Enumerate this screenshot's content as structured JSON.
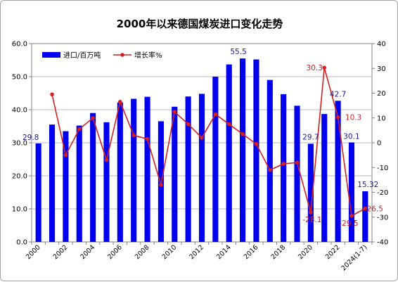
{
  "chart_data": {
    "type": "bar+line",
    "title": "2000年以来德国煤炭进口变化走势",
    "x_ticks": [
      "2000",
      "2002",
      "2004",
      "2006",
      "2008",
      "2010",
      "2012",
      "2014",
      "2016",
      "2018",
      "2020",
      "2022",
      "2024(1-7)"
    ],
    "categories": [
      "2000",
      "2001",
      "2002",
      "2003",
      "2004",
      "2005",
      "2006",
      "2007",
      "2008",
      "2009",
      "2010",
      "2011",
      "2012",
      "2013",
      "2014",
      "2015",
      "2016",
      "2017",
      "2018",
      "2019",
      "2020",
      "2021",
      "2022",
      "2023",
      "2024(1-7)"
    ],
    "y_left": {
      "ylim": [
        0,
        60
      ],
      "ticks": [
        "0.0",
        "10.0",
        "20.0",
        "30.0",
        "40.0",
        "50.0",
        "60.0"
      ]
    },
    "y_right": {
      "ylim": [
        -40,
        40
      ],
      "ticks": [
        "-40",
        "-30",
        "-20",
        "-10",
        "0",
        "10",
        "20",
        "30",
        "40"
      ]
    },
    "grid": true,
    "legend_position": "top-left",
    "series": [
      {
        "name": "进口/百万吨",
        "type": "bar",
        "axis": "left",
        "color": "#0000ee",
        "values": [
          29.8,
          35.5,
          33.5,
          35.2,
          39.0,
          36.2,
          42.2,
          43.3,
          43.9,
          36.5,
          40.9,
          44.0,
          44.8,
          50.0,
          53.7,
          55.5,
          55.2,
          49.0,
          44.7,
          41.2,
          29.7,
          38.7,
          42.7,
          30.1,
          15.32
        ],
        "data_labels": [
          {
            "index": 0,
            "text": "29.8"
          },
          {
            "index": 15,
            "text": "55.5"
          },
          {
            "index": 20,
            "text": "29.7"
          },
          {
            "index": 22,
            "text": "42.7"
          },
          {
            "index": 23,
            "text": "30.1"
          },
          {
            "index": 24,
            "text": "15.32"
          }
        ]
      },
      {
        "name": "增长率%",
        "type": "line",
        "axis": "right",
        "color": "#d42020",
        "values": [
          null,
          19.5,
          -5.0,
          5.5,
          10.0,
          -7.0,
          16.5,
          3.0,
          1.5,
          -17.0,
          12.5,
          7.5,
          2.0,
          11.5,
          7.5,
          3.5,
          -0.5,
          -11.0,
          -8.5,
          -8.0,
          -28.1,
          30.3,
          10.3,
          -29.5,
          -26.5
        ],
        "data_labels": [
          {
            "index": 20,
            "text": "-28.1"
          },
          {
            "index": 21,
            "text": "30.3"
          },
          {
            "index": 22,
            "text": "10.3"
          },
          {
            "index": 23,
            "text": "-29.5"
          },
          {
            "index": 24,
            "text": "-26.5"
          }
        ]
      }
    ]
  }
}
